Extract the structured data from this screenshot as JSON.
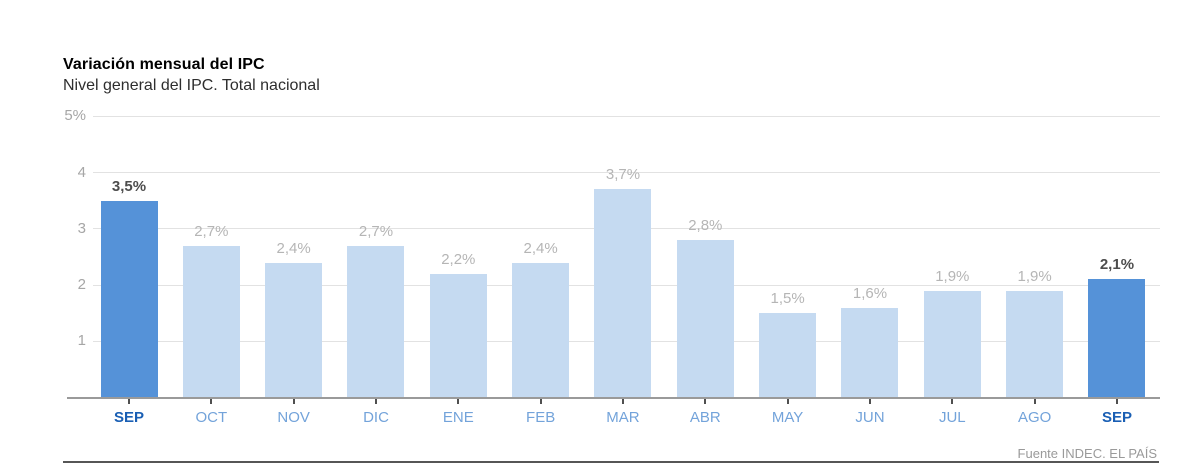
{
  "chart_data": {
    "type": "bar",
    "title": "Variación mensual del IPC",
    "subtitle": "Nivel general del IPC. Total nacional",
    "categories": [
      "SEP",
      "OCT",
      "NOV",
      "DIC",
      "ENE",
      "FEB",
      "MAR",
      "ABR",
      "MAY",
      "JUN",
      "JUL",
      "AGO",
      "SEP"
    ],
    "values": [
      3.5,
      2.7,
      2.4,
      2.7,
      2.2,
      2.4,
      3.7,
      2.8,
      1.5,
      1.6,
      1.9,
      1.9,
      2.1
    ],
    "value_labels": [
      "3,5%",
      "2,7%",
      "2,4%",
      "2,7%",
      "2,2%",
      "2,4%",
      "3,7%",
      "2,8%",
      "1,5%",
      "1,6%",
      "1,9%",
      "1,9%",
      "2,1%"
    ],
    "highlighted_indices": [
      0,
      12
    ],
    "y_ticks": [
      {
        "value": 1,
        "label": "1"
      },
      {
        "value": 2,
        "label": "2"
      },
      {
        "value": 3,
        "label": "3"
      },
      {
        "value": 4,
        "label": "4"
      },
      {
        "value": 5,
        "label": "5%"
      }
    ],
    "ylim": [
      0,
      5
    ],
    "xlabel": "",
    "ylabel": "",
    "grid": "horizontal",
    "legend": "none",
    "colors": {
      "bar_highlight": "#5592d8",
      "bar_default": "#c5daf1",
      "value_label_highlight": "#4d4d4d",
      "value_label_default": "#b5b5b5",
      "axis_label_highlight": "#1a5fb4",
      "axis_label_default": "#73a3da",
      "y_label": "#a6a6a6",
      "gridline": "#e2e2e2",
      "axis_line": "#9a9a9a",
      "tick": "#4f4f4f"
    }
  },
  "footer": {
    "source": "Fuente INDEC. EL PAÍS"
  }
}
